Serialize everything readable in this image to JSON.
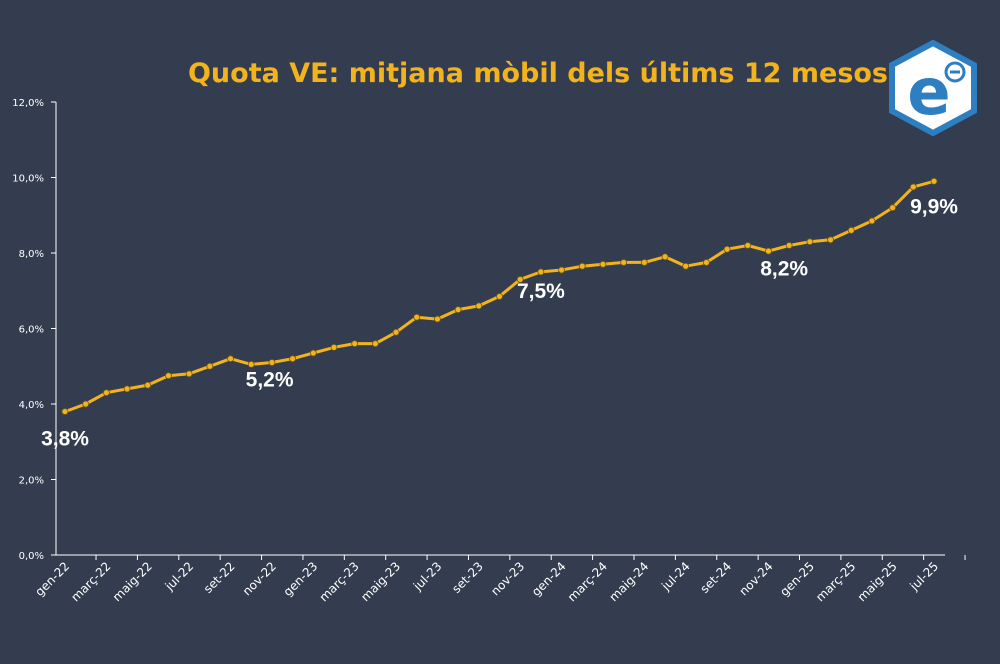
{
  "chart_data": {
    "type": "line",
    "title": "Quota VE: mitjana mòbil dels últims 12 mesos",
    "xlabel": "",
    "ylabel": "",
    "ylim": [
      0,
      12
    ],
    "y_ticks": [
      "0,0%",
      "2,0%",
      "4,0%",
      "6,0%",
      "8,0%",
      "10,0%",
      "12,0%"
    ],
    "x_tick_labels": [
      "gen-22",
      "març-22",
      "maig-22",
      "jul-22",
      "set-22",
      "nov-22",
      "gen-23",
      "març-23",
      "maig-23",
      "jul-23",
      "set-23",
      "nov-23",
      "gen-24",
      "març-24",
      "maig-24",
      "jul-24",
      "set-24",
      "nov-24",
      "gen-25",
      "març-25",
      "maig-25",
      "jul-25"
    ],
    "x": [
      "gen-22",
      "febr-22",
      "març-22",
      "abr-22",
      "maig-22",
      "juny-22",
      "jul-22",
      "ag-22",
      "set-22",
      "oct-22",
      "nov-22",
      "des-22",
      "gen-23",
      "febr-23",
      "març-23",
      "abr-23",
      "maig-23",
      "juny-23",
      "jul-23",
      "ag-23",
      "set-23",
      "oct-23",
      "nov-23",
      "des-23",
      "gen-24",
      "febr-24",
      "març-24",
      "abr-24",
      "maig-24",
      "juny-24",
      "jul-24",
      "ag-24",
      "set-24",
      "oct-24",
      "nov-24",
      "des-24",
      "gen-25",
      "febr-25",
      "març-25",
      "abr-25",
      "maig-25",
      "juny-25",
      "jul-25"
    ],
    "series": [
      {
        "values": [
          3.8,
          4.0,
          4.3,
          4.4,
          4.5,
          4.75,
          4.8,
          5.0,
          5.2,
          5.05,
          5.1,
          5.2,
          5.35,
          5.5,
          5.6,
          5.6,
          5.9,
          6.3,
          6.25,
          6.5,
          6.6,
          6.85,
          7.3,
          7.5,
          7.55,
          7.65,
          7.7,
          7.75,
          7.75,
          7.9,
          7.65,
          7.75,
          8.1,
          8.2,
          8.05,
          8.2,
          8.3,
          8.35,
          8.6,
          8.85,
          9.2,
          9.75,
          9.9
        ]
      }
    ],
    "data_labels": [
      {
        "index": 0,
        "text": "3,8%"
      },
      {
        "index": 11,
        "text": "5,2%"
      },
      {
        "index": 23,
        "text": "7,5%"
      },
      {
        "index": 35,
        "text": "8,2%"
      },
      {
        "index": 42,
        "text": "9,9%"
      }
    ],
    "grid": false,
    "legend": "none",
    "line_color": "#f2b31c",
    "text_color": "#ffffff",
    "axis_color": "#ffffff"
  },
  "logo": {
    "name": "brand-logo-e-icon",
    "bg_color": "#ffffff",
    "border_color": "#2d7fc1",
    "glyph": "e"
  }
}
